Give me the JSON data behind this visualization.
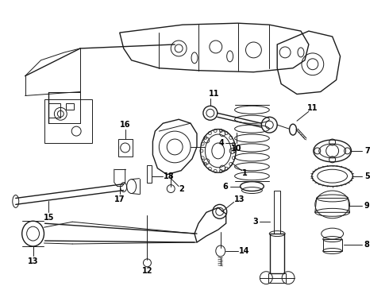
{
  "background_color": "#ffffff",
  "line_color": "#1a1a1a",
  "text_color": "#000000",
  "fig_width": 4.9,
  "fig_height": 3.6,
  "dpi": 100,
  "lw": 0.7,
  "font_size": 7.0
}
